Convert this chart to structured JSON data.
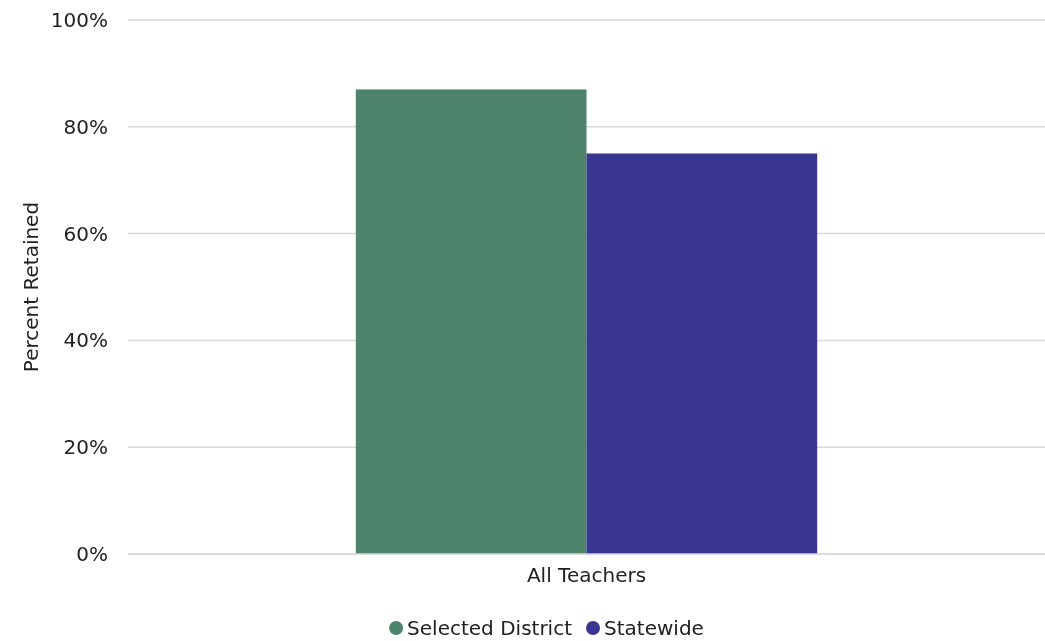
{
  "chart_data": {
    "type": "bar",
    "ylabel": "Percent Retained",
    "categories": [
      "All Teachers"
    ],
    "series": [
      {
        "name": "Selected District",
        "color": "#4e836b",
        "values": [
          87
        ]
      },
      {
        "name": "Statewide",
        "color": "#3a3591",
        "values": [
          75
        ]
      }
    ],
    "ylim": [
      0,
      100
    ],
    "yticks": [
      {
        "value": 0,
        "label": "0%"
      },
      {
        "value": 20,
        "label": "20%"
      },
      {
        "value": 40,
        "label": "40%"
      },
      {
        "value": 60,
        "label": "60%"
      },
      {
        "value": 80,
        "label": "80%"
      },
      {
        "value": 100,
        "label": "100%"
      }
    ],
    "grid": "y",
    "legend": "bottom"
  }
}
